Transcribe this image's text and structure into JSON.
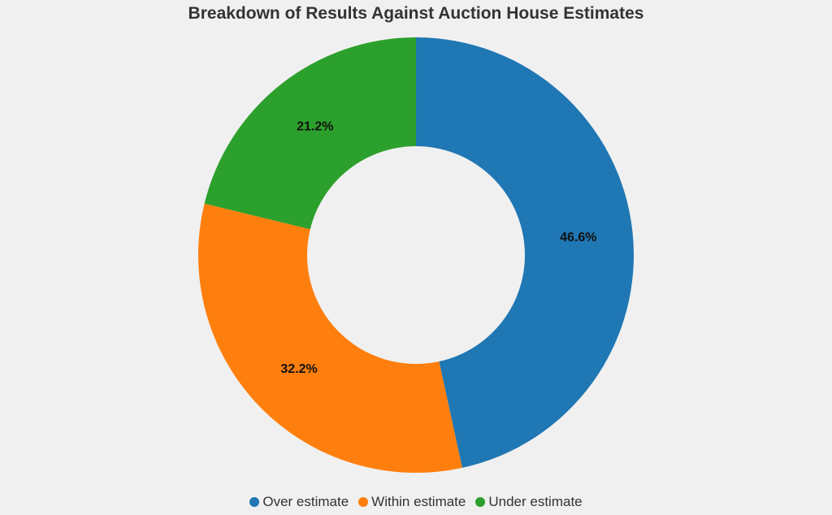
{
  "chart_data": {
    "type": "pie",
    "donut": true,
    "title": "Breakdown of Results Against Auction House Estimates",
    "categories": [
      "Over estimate",
      "Within estimate",
      "Under estimate"
    ],
    "values": [
      46.6,
      32.2,
      21.2
    ],
    "labels": [
      "46.6%",
      "32.2%",
      "21.2%"
    ],
    "colors": [
      "#1f77b4",
      "#ff7f0e",
      "#2ca02c"
    ],
    "legend_position": "bottom"
  }
}
